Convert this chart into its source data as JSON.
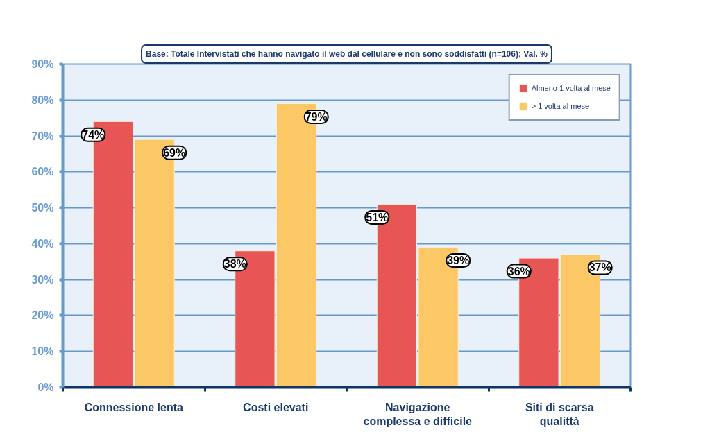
{
  "chart_data": {
    "type": "bar",
    "title": "Base: Totale Intervistati che hanno navigato il web dal cellulare e non sono soddisfatti (n=106); Val. %",
    "categories": [
      "Connessione lenta",
      "Costi elevati",
      "Navigazione complessa e difficile",
      "Siti di scarsa qualittà"
    ],
    "series": [
      {
        "name": "Almeno 1 volta al mese",
        "color": "#e85555",
        "values": [
          74,
          38,
          51,
          36
        ],
        "value_labels": [
          "74%",
          "38%",
          "51%",
          "36%"
        ]
      },
      {
        "name": "> 1 volta al mese",
        "color": "#fbc865",
        "values": [
          69,
          79,
          39,
          37
        ],
        "value_labels": [
          "69%",
          "79%",
          "39%",
          "37%"
        ]
      }
    ],
    "ylim": [
      0,
      90
    ],
    "yticks": [
      {
        "value": 0,
        "label": "0%"
      },
      {
        "value": 10,
        "label": "10%"
      },
      {
        "value": 20,
        "label": "20%"
      },
      {
        "value": 30,
        "label": "30%"
      },
      {
        "value": 40,
        "label": "40%"
      },
      {
        "value": 50,
        "label": "50%"
      },
      {
        "value": 60,
        "label": "60%"
      },
      {
        "value": 70,
        "label": "70%"
      },
      {
        "value": 80,
        "label": "80%"
      },
      {
        "value": 90,
        "label": "90%"
      }
    ],
    "grid": "y",
    "legend": "top right"
  }
}
